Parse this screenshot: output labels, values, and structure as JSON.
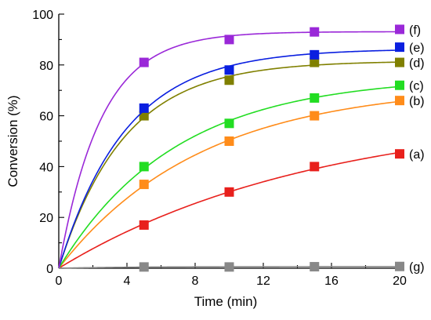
{
  "chart_data": {
    "type": "scatter",
    "title": "",
    "xlabel": "Time (min)",
    "ylabel": "Conversion (%)",
    "xlim": [
      0,
      20
    ],
    "ylim": [
      0,
      100
    ],
    "x_ticks": [
      0,
      4,
      8,
      12,
      16,
      20
    ],
    "y_ticks": [
      0,
      20,
      40,
      60,
      80,
      100
    ],
    "grid": false,
    "legend": "none",
    "x": [
      0,
      5,
      10,
      15,
      20
    ],
    "series": [
      {
        "label": "(a)",
        "color": "#e8201c",
        "points": [
          [
            0,
            0
          ],
          [
            5,
            17
          ],
          [
            10,
            30
          ],
          [
            15,
            40
          ],
          [
            20,
            45
          ]
        ]
      },
      {
        "label": "(b)",
        "color": "#ff8c1a",
        "points": [
          [
            0,
            0
          ],
          [
            5,
            33
          ],
          [
            10,
            50
          ],
          [
            15,
            60
          ],
          [
            20,
            66
          ]
        ]
      },
      {
        "label": "(c)",
        "color": "#22dd22",
        "points": [
          [
            0,
            0
          ],
          [
            5,
            40
          ],
          [
            10,
            57
          ],
          [
            15,
            67
          ],
          [
            20,
            72
          ]
        ]
      },
      {
        "label": "(d)",
        "color": "#808000",
        "points": [
          [
            0,
            0
          ],
          [
            5,
            60
          ],
          [
            10,
            74
          ],
          [
            15,
            81
          ],
          [
            20,
            81
          ]
        ]
      },
      {
        "label": "(e)",
        "color": "#0a1fe0",
        "points": [
          [
            0,
            0
          ],
          [
            5,
            63
          ],
          [
            10,
            78
          ],
          [
            15,
            84
          ],
          [
            20,
            87
          ]
        ]
      },
      {
        "label": "(f)",
        "color": "#9a28d8",
        "points": [
          [
            0,
            0
          ],
          [
            5,
            81
          ],
          [
            10,
            90
          ],
          [
            15,
            93
          ],
          [
            20,
            94
          ]
        ]
      },
      {
        "label": "(g)",
        "color": "#888888",
        "points": [
          [
            0,
            0
          ],
          [
            5,
            0.5
          ],
          [
            10,
            0.5
          ],
          [
            15,
            0.6
          ],
          [
            20,
            0.7
          ]
        ]
      }
    ]
  }
}
